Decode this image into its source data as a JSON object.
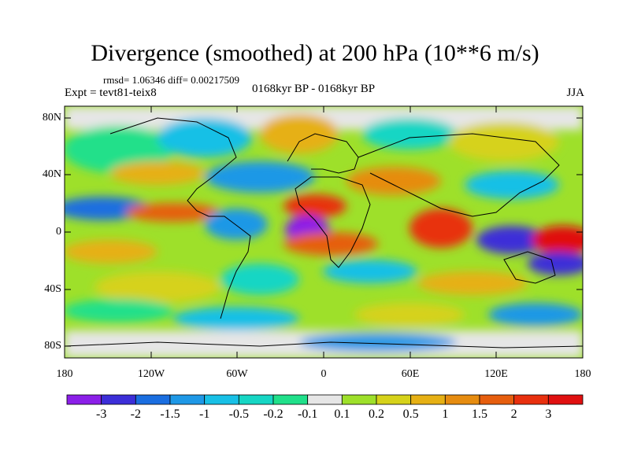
{
  "title": "Divergence (smoothed) at 200 hPa (10**6 m/s)",
  "stats": "rmsd= 1.06346 diff= 0.00217509",
  "experiment": "Expt = tevt81-teix8",
  "period": "0168kyr BP - 0168kyr BP",
  "season": "JJA",
  "lat_axis": [
    "80N",
    "40N",
    "0",
    "40S",
    "80S"
  ],
  "lon_axis": [
    "180",
    "120W",
    "60W",
    "0",
    "60E",
    "120E",
    "180"
  ],
  "colorbar": {
    "labels": [
      "-3",
      "-2",
      "-1.5",
      "-1",
      "-0.5",
      "-0.2",
      "-0.1",
      "0.1",
      "0.2",
      "0.5",
      "1",
      "1.5",
      "2",
      "3"
    ],
    "colors": [
      "#8b1fe8",
      "#3c2ed8",
      "#1a6ee0",
      "#1e98e6",
      "#18c0e6",
      "#16d6c4",
      "#20e08a",
      "#e6e6e6",
      "#9ee02a",
      "#d6d21a",
      "#e6b014",
      "#e68c10",
      "#e65e0e",
      "#e8300e",
      "#e01010"
    ]
  }
}
